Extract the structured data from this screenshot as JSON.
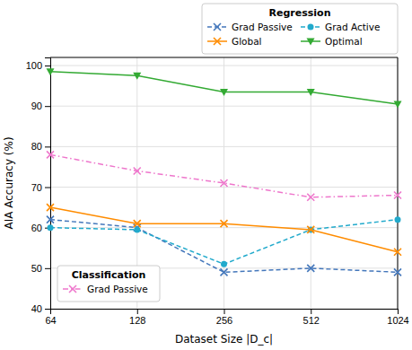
{
  "chart_data": {
    "type": "line",
    "x": [
      64,
      128,
      256,
      512,
      1024
    ],
    "xlabel": "Dataset Size |D_c|",
    "ylabel": "AIA Accuracy (%)",
    "xlim": [
      64,
      1024
    ],
    "xticks": [
      64,
      128,
      256,
      512,
      1024
    ],
    "ylim": [
      40,
      102
    ],
    "yticks": [
      40,
      50,
      60,
      70,
      80,
      90,
      100
    ],
    "log": "x",
    "grid": true,
    "series": [
      {
        "name": "Grad Passive",
        "color": "#4477bb",
        "marker": "x",
        "line_style": "dashed",
        "values": [
          62,
          60,
          49,
          50,
          49
        ]
      },
      {
        "name": "Grad Active",
        "color": "#22aacc",
        "marker": "circle",
        "line_style": "dashed",
        "values": [
          60,
          59.5,
          51,
          59.5,
          62
        ]
      },
      {
        "name": "Global",
        "color": "#ff8c00",
        "marker": "x",
        "line_style": "solid",
        "values": [
          65,
          61,
          61,
          59.5,
          54
        ]
      },
      {
        "name": "Optimal",
        "color": "#33aa33",
        "marker": "triangle-down",
        "line_style": "solid",
        "values": [
          98.5,
          97.5,
          93.5,
          93.5,
          90.5
        ]
      },
      {
        "name": "Grad Passive",
        "color": "#ee77cc",
        "marker": "x",
        "line_style": "dashdot",
        "values": [
          78,
          74,
          71,
          67.5,
          68
        ]
      }
    ],
    "legends": [
      {
        "title": "Regression",
        "legend": "upper right",
        "series": [
          0,
          1,
          2,
          3
        ]
      },
      {
        "title": "Classification",
        "legend": "lower left",
        "series": [
          4
        ]
      }
    ]
  }
}
